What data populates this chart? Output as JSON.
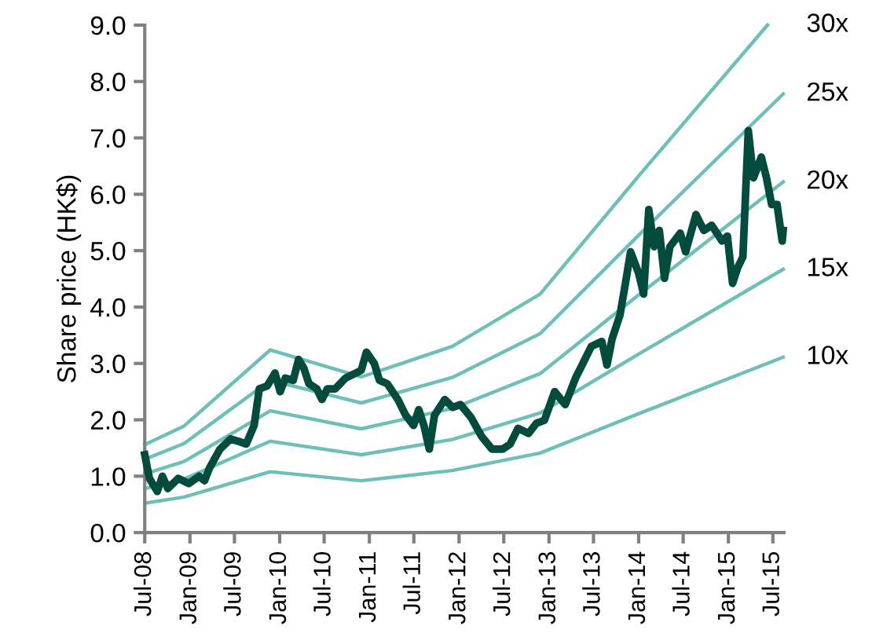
{
  "chart_data": {
    "type": "line",
    "ylabel": "Share price (HK$)",
    "x": [
      "2008-07-01",
      "2008-07-20",
      "2008-08-21",
      "2008-09-11",
      "2008-10-03",
      "2008-11-14",
      "2008-12-27",
      "2009-02-07",
      "2009-03-01",
      "2009-03-22",
      "2009-05-03",
      "2009-06-15",
      "2009-07-17",
      "2009-08-18",
      "2009-09-19",
      "2009-10-10",
      "2009-11-11",
      "2009-12-13",
      "2010-01-03",
      "2010-01-24",
      "2010-02-25",
      "2010-03-19",
      "2010-04-09",
      "2010-04-30",
      "2010-06-01",
      "2010-06-22",
      "2010-07-14",
      "2010-08-15",
      "2010-09-26",
      "2010-11-08",
      "2010-11-29",
      "2010-12-20",
      "2011-01-21",
      "2011-02-11",
      "2011-03-15",
      "2011-04-27",
      "2011-05-29",
      "2011-06-30",
      "2011-07-21",
      "2011-08-11",
      "2011-09-02",
      "2011-09-23",
      "2011-11-04",
      "2011-12-06",
      "2012-01-07",
      "2012-02-19",
      "2012-04-01",
      "2012-05-14",
      "2012-06-26",
      "2012-07-27",
      "2012-08-28",
      "2012-10-10",
      "2012-11-11",
      "2012-12-13",
      "2013-01-24",
      "2013-03-08",
      "2013-04-19",
      "2013-05-11",
      "2013-06-22",
      "2013-08-04",
      "2013-08-25",
      "2013-09-15",
      "2013-10-17",
      "2013-11-08",
      "2013-11-29",
      "2013-12-31",
      "2014-01-21",
      "2014-02-11",
      "2014-03-05",
      "2014-03-26",
      "2014-04-16",
      "2014-05-08",
      "2014-06-19",
      "2014-07-11",
      "2014-08-22",
      "2014-09-23",
      "2014-10-25",
      "2014-12-06",
      "2014-12-28",
      "2015-01-18",
      "2015-02-08",
      "2015-03-01",
      "2015-03-23",
      "2015-04-13",
      "2015-05-15",
      "2015-06-05",
      "2015-06-26",
      "2015-07-18",
      "2015-08-08",
      "2015-08-12"
    ],
    "series": [
      {
        "color": "#034b3c",
        "values": [
          1.38,
          0.96,
          0.73,
          1.0,
          0.78,
          0.96,
          0.87,
          1.0,
          0.92,
          1.15,
          1.48,
          1.66,
          1.62,
          1.57,
          1.9,
          2.55,
          2.6,
          2.83,
          2.5,
          2.74,
          2.7,
          3.07,
          2.92,
          2.64,
          2.55,
          2.36,
          2.55,
          2.55,
          2.74,
          2.83,
          2.88,
          3.2,
          3.0,
          2.7,
          2.64,
          2.36,
          2.08,
          1.9,
          2.18,
          1.9,
          1.48,
          2.08,
          2.36,
          2.22,
          2.27,
          2.04,
          1.71,
          1.48,
          1.48,
          1.57,
          1.85,
          1.76,
          1.94,
          1.99,
          2.5,
          2.27,
          2.74,
          2.93,
          3.3,
          3.39,
          2.97,
          3.44,
          3.86,
          4.42,
          4.98,
          4.61,
          4.23,
          5.73,
          5.07,
          5.36,
          4.51,
          5.07,
          5.31,
          4.98,
          5.64,
          5.36,
          5.45,
          5.17,
          5.26,
          4.42,
          4.7,
          4.89,
          7.13,
          6.29,
          6.66,
          6.29,
          5.82,
          5.82,
          5.17,
          5.36
        ]
      },
      {
        "name": "30x",
        "color": "#6dbfb8",
        "x": [
          "2008-07-01",
          "2008-12-08",
          "2009-11-24",
          "2010-11-29",
          "2011-12-04",
          "2012-11-26",
          "2014-01-02",
          "2015-06-09"
        ],
        "values": [
          1.56,
          1.89,
          3.24,
          2.76,
          3.3,
          4.23,
          6.33,
          9.0
        ]
      },
      {
        "name": "25x",
        "color": "#6dbfb8",
        "x": [
          "2008-07-01",
          "2008-12-08",
          "2009-11-24",
          "2010-11-29",
          "2011-12-04",
          "2012-11-26",
          "2014-01-02",
          "2015-08-12"
        ],
        "values": [
          1.3,
          1.58,
          2.7,
          2.3,
          2.75,
          3.53,
          5.28,
          7.78
        ]
      },
      {
        "name": "20x",
        "color": "#6dbfb8",
        "x": [
          "2008-07-01",
          "2008-12-08",
          "2009-11-24",
          "2010-11-29",
          "2011-12-04",
          "2012-11-26",
          "2014-01-02",
          "2015-08-12"
        ],
        "values": [
          1.04,
          1.26,
          2.16,
          1.84,
          2.2,
          2.82,
          4.22,
          6.22
        ]
      },
      {
        "name": "15x",
        "color": "#6dbfb8",
        "x": [
          "2008-07-01",
          "2008-12-08",
          "2009-11-24",
          "2010-11-29",
          "2011-12-04",
          "2012-11-26",
          "2014-01-02",
          "2015-08-12"
        ],
        "values": [
          0.78,
          0.95,
          1.62,
          1.38,
          1.65,
          2.12,
          3.17,
          4.67
        ]
      },
      {
        "name": "10x",
        "color": "#6dbfb8",
        "x": [
          "2008-07-01",
          "2008-12-08",
          "2009-11-24",
          "2010-11-29",
          "2011-12-04",
          "2012-11-26",
          "2014-01-02",
          "2015-08-12"
        ],
        "values": [
          0.52,
          0.63,
          1.08,
          0.92,
          1.1,
          1.41,
          2.11,
          3.11
        ]
      }
    ],
    "xlim": [
      "2008-07-01",
      "2015-08-15"
    ],
    "xticks": [
      {
        "value": "2008-07-01",
        "label": "Jul-08"
      },
      {
        "value": "2009-01-01",
        "label": "Jan-09"
      },
      {
        "value": "2009-07-01",
        "label": "Jul-09"
      },
      {
        "value": "2010-01-01",
        "label": "Jan-10"
      },
      {
        "value": "2010-07-01",
        "label": "Jul-10"
      },
      {
        "value": "2011-01-01",
        "label": "Jan-11"
      },
      {
        "value": "2011-07-01",
        "label": "Jul-11"
      },
      {
        "value": "2012-01-01",
        "label": "Jan-12"
      },
      {
        "value": "2012-07-01",
        "label": "Jul-12"
      },
      {
        "value": "2013-01-01",
        "label": "Jan-13"
      },
      {
        "value": "2013-07-01",
        "label": "Jul-13"
      },
      {
        "value": "2014-01-01",
        "label": "Jan-14"
      },
      {
        "value": "2014-07-01",
        "label": "Jul-14"
      },
      {
        "value": "2015-01-01",
        "label": "Jan-15"
      },
      {
        "value": "2015-07-01",
        "label": "Jul-15"
      }
    ],
    "ylim": [
      0,
      9
    ],
    "yticks": [
      {
        "value": 0,
        "label": "0.0"
      },
      {
        "value": 1,
        "label": "1.0"
      },
      {
        "value": 2,
        "label": "2.0"
      },
      {
        "value": 3,
        "label": "3.0"
      },
      {
        "value": 4,
        "label": "4.0"
      },
      {
        "value": 5,
        "label": "5.0"
      },
      {
        "value": 6,
        "label": "6.0"
      },
      {
        "value": 7,
        "label": "7.0"
      },
      {
        "value": 8,
        "label": "8.0"
      },
      {
        "value": 9,
        "label": "9.0"
      }
    ],
    "grid": false,
    "legend": false,
    "marker": "none",
    "line_style": "solid"
  }
}
